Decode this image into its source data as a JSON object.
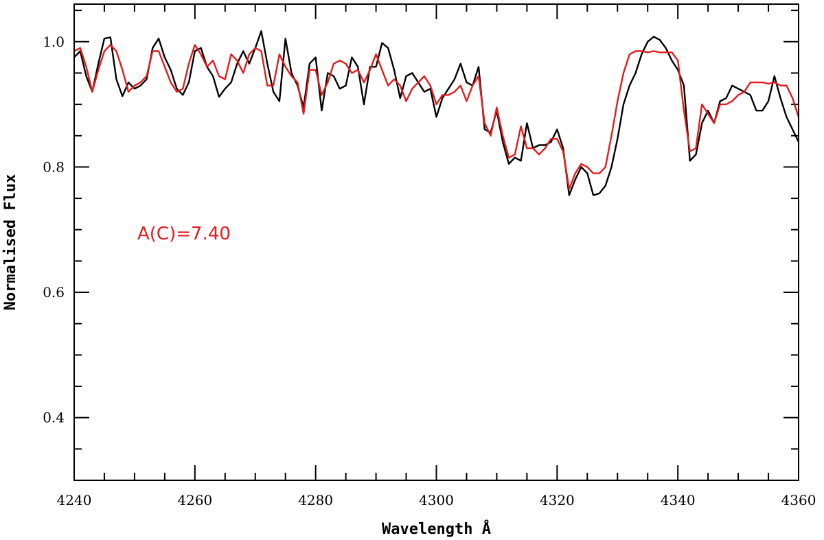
{
  "chart_data": {
    "type": "line",
    "xlabel": "Wavelength Å",
    "ylabel": "Normalised Flux",
    "xlim": [
      4240,
      4360
    ],
    "ylim": [
      0.3,
      1.06
    ],
    "x_major_ticks": [
      4240,
      4260,
      4280,
      4300,
      4320,
      4340,
      4360
    ],
    "x_minor_step": 5,
    "y_major_ticks": [
      0.4,
      0.6,
      0.8,
      1.0
    ],
    "y_minor_step": 0.05,
    "x_tick_labels": [
      "4240",
      "4260",
      "4280",
      "4300",
      "4320",
      "4340",
      "4360"
    ],
    "y_tick_labels": [
      "0.4",
      "0.6",
      "0.8",
      "1.0"
    ],
    "grid": false,
    "annotations": [
      {
        "text": "A(C)=7.40",
        "color": "#e41a1c"
      }
    ],
    "series": [
      {
        "color": "#000000",
        "points": [
          [
            4240.0,
            0.975
          ],
          [
            4241.0,
            0.985
          ],
          [
            4242.0,
            0.945
          ],
          [
            4243.0,
            0.92
          ],
          [
            4244.0,
            0.965
          ],
          [
            4245.0,
            1.005
          ],
          [
            4246.0,
            1.007
          ],
          [
            4247.0,
            0.94
          ],
          [
            4248.0,
            0.913
          ],
          [
            4249.0,
            0.935
          ],
          [
            4250.0,
            0.925
          ],
          [
            4251.0,
            0.93
          ],
          [
            4252.0,
            0.94
          ],
          [
            4253.0,
            0.99
          ],
          [
            4254.0,
            1.005
          ],
          [
            4255.0,
            0.975
          ],
          [
            4256.0,
            0.955
          ],
          [
            4257.0,
            0.925
          ],
          [
            4258.0,
            0.915
          ],
          [
            4259.0,
            0.935
          ],
          [
            4260.0,
            0.985
          ],
          [
            4261.0,
            0.99
          ],
          [
            4262.0,
            0.96
          ],
          [
            4263.0,
            0.945
          ],
          [
            4264.0,
            0.912
          ],
          [
            4265.0,
            0.925
          ],
          [
            4266.0,
            0.935
          ],
          [
            4267.0,
            0.965
          ],
          [
            4268.0,
            0.985
          ],
          [
            4269.0,
            0.965
          ],
          [
            4270.0,
            0.99
          ],
          [
            4271.0,
            1.017
          ],
          [
            4272.0,
            0.965
          ],
          [
            4273.0,
            0.92
          ],
          [
            4274.0,
            0.905
          ],
          [
            4275.0,
            1.005
          ],
          [
            4276.0,
            0.95
          ],
          [
            4277.0,
            0.93
          ],
          [
            4278.0,
            0.895
          ],
          [
            4279.0,
            0.965
          ],
          [
            4280.0,
            0.975
          ],
          [
            4281.0,
            0.89
          ],
          [
            4282.0,
            0.95
          ],
          [
            4283.0,
            0.945
          ],
          [
            4284.0,
            0.925
          ],
          [
            4285.0,
            0.93
          ],
          [
            4286.0,
            0.975
          ],
          [
            4287.0,
            0.96
          ],
          [
            4288.0,
            0.9
          ],
          [
            4289.0,
            0.96
          ],
          [
            4290.0,
            0.96
          ],
          [
            4291.0,
            0.998
          ],
          [
            4292.0,
            0.99
          ],
          [
            4293.0,
            0.955
          ],
          [
            4294.0,
            0.91
          ],
          [
            4295.0,
            0.945
          ],
          [
            4296.0,
            0.95
          ],
          [
            4297.0,
            0.935
          ],
          [
            4298.0,
            0.92
          ],
          [
            4299.0,
            0.925
          ],
          [
            4300.0,
            0.88
          ],
          [
            4301.0,
            0.91
          ],
          [
            4302.0,
            0.925
          ],
          [
            4303.0,
            0.94
          ],
          [
            4304.0,
            0.965
          ],
          [
            4305.0,
            0.935
          ],
          [
            4306.0,
            0.93
          ],
          [
            4307.0,
            0.96
          ],
          [
            4308.0,
            0.86
          ],
          [
            4309.0,
            0.855
          ],
          [
            4310.0,
            0.89
          ],
          [
            4311.0,
            0.84
          ],
          [
            4312.0,
            0.805
          ],
          [
            4313.0,
            0.815
          ],
          [
            4314.0,
            0.81
          ],
          [
            4315.0,
            0.87
          ],
          [
            4316.0,
            0.83
          ],
          [
            4317.0,
            0.835
          ],
          [
            4318.0,
            0.835
          ],
          [
            4319.0,
            0.84
          ],
          [
            4320.0,
            0.86
          ],
          [
            4321.0,
            0.83
          ],
          [
            4322.0,
            0.755
          ],
          [
            4323.0,
            0.78
          ],
          [
            4324.0,
            0.8
          ],
          [
            4325.0,
            0.79
          ],
          [
            4326.0,
            0.755
          ],
          [
            4327.0,
            0.758
          ],
          [
            4328.0,
            0.77
          ],
          [
            4329.0,
            0.8
          ],
          [
            4330.0,
            0.845
          ],
          [
            4331.0,
            0.9
          ],
          [
            4332.0,
            0.93
          ],
          [
            4333.0,
            0.95
          ],
          [
            4334.0,
            0.98
          ],
          [
            4335.0,
            1.0
          ],
          [
            4336.0,
            1.008
          ],
          [
            4337.0,
            1.003
          ],
          [
            4338.0,
            0.99
          ],
          [
            4339.0,
            0.97
          ],
          [
            4340.0,
            0.955
          ],
          [
            4341.0,
            0.93
          ],
          [
            4342.0,
            0.81
          ],
          [
            4343.0,
            0.82
          ],
          [
            4344.0,
            0.87
          ],
          [
            4345.0,
            0.89
          ],
          [
            4346.0,
            0.87
          ],
          [
            4347.0,
            0.905
          ],
          [
            4348.0,
            0.91
          ],
          [
            4349.0,
            0.93
          ],
          [
            4350.0,
            0.925
          ],
          [
            4351.0,
            0.92
          ],
          [
            4352.0,
            0.915
          ],
          [
            4353.0,
            0.89
          ],
          [
            4354.0,
            0.89
          ],
          [
            4355.0,
            0.905
          ],
          [
            4356.0,
            0.945
          ],
          [
            4357.0,
            0.91
          ],
          [
            4358.0,
            0.88
          ],
          [
            4359.0,
            0.86
          ],
          [
            4360.0,
            0.84
          ]
        ]
      },
      {
        "color": "#e41a1c",
        "points": [
          [
            4240.0,
            0.985
          ],
          [
            4241.0,
            0.99
          ],
          [
            4242.0,
            0.96
          ],
          [
            4243.0,
            0.92
          ],
          [
            4244.0,
            0.955
          ],
          [
            4245.0,
            0.985
          ],
          [
            4246.0,
            0.995
          ],
          [
            4247.0,
            0.985
          ],
          [
            4248.0,
            0.955
          ],
          [
            4249.0,
            0.92
          ],
          [
            4250.0,
            0.93
          ],
          [
            4251.0,
            0.935
          ],
          [
            4252.0,
            0.945
          ],
          [
            4253.0,
            0.985
          ],
          [
            4254.0,
            0.985
          ],
          [
            4255.0,
            0.96
          ],
          [
            4256.0,
            0.935
          ],
          [
            4257.0,
            0.92
          ],
          [
            4258.0,
            0.925
          ],
          [
            4259.0,
            0.965
          ],
          [
            4260.0,
            0.995
          ],
          [
            4261.0,
            0.98
          ],
          [
            4262.0,
            0.96
          ],
          [
            4263.0,
            0.97
          ],
          [
            4264.0,
            0.945
          ],
          [
            4265.0,
            0.94
          ],
          [
            4266.0,
            0.98
          ],
          [
            4267.0,
            0.97
          ],
          [
            4268.0,
            0.95
          ],
          [
            4269.0,
            0.98
          ],
          [
            4270.0,
            0.99
          ],
          [
            4271.0,
            0.985
          ],
          [
            4272.0,
            0.93
          ],
          [
            4273.0,
            0.93
          ],
          [
            4274.0,
            0.98
          ],
          [
            4275.0,
            0.96
          ],
          [
            4276.0,
            0.945
          ],
          [
            4277.0,
            0.935
          ],
          [
            4278.0,
            0.885
          ],
          [
            4279.0,
            0.955
          ],
          [
            4280.0,
            0.955
          ],
          [
            4281.0,
            0.915
          ],
          [
            4282.0,
            0.935
          ],
          [
            4283.0,
            0.965
          ],
          [
            4284.0,
            0.97
          ],
          [
            4285.0,
            0.965
          ],
          [
            4286.0,
            0.95
          ],
          [
            4287.0,
            0.955
          ],
          [
            4288.0,
            0.935
          ],
          [
            4289.0,
            0.955
          ],
          [
            4290.0,
            0.98
          ],
          [
            4291.0,
            0.955
          ],
          [
            4292.0,
            0.93
          ],
          [
            4293.0,
            0.94
          ],
          [
            4294.0,
            0.93
          ],
          [
            4295.0,
            0.905
          ],
          [
            4296.0,
            0.925
          ],
          [
            4297.0,
            0.935
          ],
          [
            4298.0,
            0.945
          ],
          [
            4299.0,
            0.93
          ],
          [
            4300.0,
            0.9
          ],
          [
            4301.0,
            0.915
          ],
          [
            4302.0,
            0.915
          ],
          [
            4303.0,
            0.92
          ],
          [
            4304.0,
            0.93
          ],
          [
            4305.0,
            0.905
          ],
          [
            4306.0,
            0.93
          ],
          [
            4307.0,
            0.945
          ],
          [
            4308.0,
            0.87
          ],
          [
            4309.0,
            0.85
          ],
          [
            4310.0,
            0.895
          ],
          [
            4311.0,
            0.85
          ],
          [
            4312.0,
            0.815
          ],
          [
            4313.0,
            0.82
          ],
          [
            4314.0,
            0.865
          ],
          [
            4315.0,
            0.83
          ],
          [
            4316.0,
            0.83
          ],
          [
            4317.0,
            0.82
          ],
          [
            4318.0,
            0.83
          ],
          [
            4319.0,
            0.845
          ],
          [
            4320.0,
            0.845
          ],
          [
            4321.0,
            0.825
          ],
          [
            4322.0,
            0.765
          ],
          [
            4323.0,
            0.79
          ],
          [
            4324.0,
            0.805
          ],
          [
            4325.0,
            0.8
          ],
          [
            4326.0,
            0.79
          ],
          [
            4327.0,
            0.79
          ],
          [
            4328.0,
            0.8
          ],
          [
            4329.0,
            0.85
          ],
          [
            4330.0,
            0.905
          ],
          [
            4331.0,
            0.95
          ],
          [
            4332.0,
            0.98
          ],
          [
            4333.0,
            0.985
          ],
          [
            4334.0,
            0.985
          ],
          [
            4335.0,
            0.983
          ],
          [
            4336.0,
            0.985
          ],
          [
            4337.0,
            0.983
          ],
          [
            4338.0,
            0.983
          ],
          [
            4339.0,
            0.983
          ],
          [
            4340.0,
            0.97
          ],
          [
            4341.0,
            0.89
          ],
          [
            4342.0,
            0.825
          ],
          [
            4343.0,
            0.83
          ],
          [
            4344.0,
            0.9
          ],
          [
            4345.0,
            0.885
          ],
          [
            4346.0,
            0.87
          ],
          [
            4347.0,
            0.9
          ],
          [
            4348.0,
            0.9
          ],
          [
            4349.0,
            0.905
          ],
          [
            4350.0,
            0.915
          ],
          [
            4351.0,
            0.92
          ],
          [
            4352.0,
            0.935
          ],
          [
            4353.0,
            0.935
          ],
          [
            4354.0,
            0.935
          ],
          [
            4355.0,
            0.933
          ],
          [
            4356.0,
            0.935
          ],
          [
            4357.0,
            0.93
          ],
          [
            4358.0,
            0.93
          ],
          [
            4359.0,
            0.91
          ],
          [
            4360.0,
            0.88
          ]
        ]
      }
    ]
  }
}
